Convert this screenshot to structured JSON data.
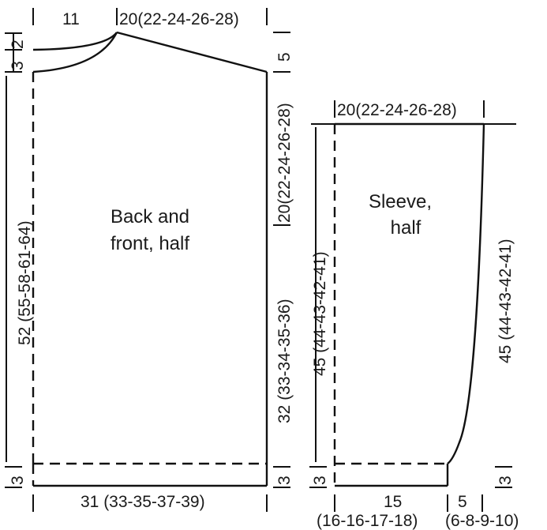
{
  "body_piece": {
    "title_line1": "Back and",
    "title_line2": "front, half",
    "top_left_width": "11",
    "shoulder_width": "20(22-24-26-28)",
    "neck_front_drop": "2",
    "neck_back_drop": "3",
    "shoulder_slope": "5",
    "total_length": "52 (55-58-61-64)",
    "armhole_depth": "20(22-24-26-28)",
    "side_length": "32 (33-34-35-36)",
    "rib_left": "3",
    "rib_right": "3",
    "bottom_width": "31 (33-35-37-39)"
  },
  "sleeve_piece": {
    "title_line1": "Sleeve,",
    "title_line2": "half",
    "top_width": "20(22-24-26-28)",
    "left_length": "45 (44-43-42-41)",
    "right_length": "45 (44-43-42-41)",
    "rib_left": "3",
    "rib_right": "3",
    "bottom_width_main": "15",
    "bottom_width_main_sizes": "(16-16-17-18)",
    "bottom_width_extra": "5",
    "bottom_width_extra_sizes": "(6-8-9-10)"
  }
}
